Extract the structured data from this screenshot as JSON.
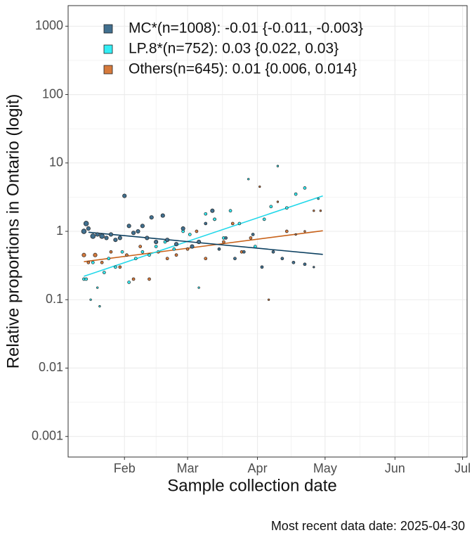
{
  "chart_data": {
    "type": "scatter",
    "xlabel": "Sample collection date",
    "ylabel": "Relative proportions in Ontario (logit)",
    "caption": "Most recent data date: 2025-04-30",
    "log_y": true,
    "grid": true,
    "legend": "top-left",
    "xlim": [
      "2025-01-07",
      "2025-07-03"
    ],
    "xticks": [
      {
        "value": "2025-02-01",
        "label": "Feb"
      },
      {
        "value": "2025-03-01",
        "label": "Mar"
      },
      {
        "value": "2025-04-01",
        "label": "Apr"
      },
      {
        "value": "2025-05-01",
        "label": "May"
      },
      {
        "value": "2025-06-01",
        "label": "Jun"
      },
      {
        "value": "2025-07-01",
        "label": "Jul"
      }
    ],
    "ylim": [
      0.0005,
      2000
    ],
    "yticks": [
      0.001,
      0.01,
      0.1,
      1,
      10,
      100,
      1000
    ],
    "series": [
      {
        "name": "MC*(n=1008): -0.01 {-0.011, -0.003}",
        "color": "#41708f",
        "line_color": "#0b3f60",
        "x": [
          "2025-01-14",
          "2025-01-15",
          "2025-01-16",
          "2025-01-18",
          "2025-01-20",
          "2025-01-22",
          "2025-01-24",
          "2025-01-26",
          "2025-01-28",
          "2025-01-30",
          "2025-02-01",
          "2025-02-03",
          "2025-02-05",
          "2025-02-07",
          "2025-02-09",
          "2025-02-11",
          "2025-02-13",
          "2025-02-15",
          "2025-02-18",
          "2025-02-20",
          "2025-02-24",
          "2025-02-27",
          "2025-03-03",
          "2025-03-06",
          "2025-03-09",
          "2025-03-12",
          "2025-03-15",
          "2025-03-18",
          "2025-03-22",
          "2025-03-26",
          "2025-03-30",
          "2025-04-03",
          "2025-04-08",
          "2025-04-12",
          "2025-04-17",
          "2025-04-22",
          "2025-04-26"
        ],
        "values": [
          1.0,
          1.3,
          1.1,
          0.85,
          0.9,
          0.85,
          0.8,
          0.9,
          0.75,
          0.8,
          3.3,
          1.2,
          0.95,
          1.0,
          1.2,
          0.8,
          1.6,
          0.7,
          1.7,
          0.75,
          0.65,
          1.1,
          0.6,
          0.7,
          1.3,
          2.0,
          0.55,
          0.8,
          0.4,
          0.5,
          0.9,
          0.3,
          0.5,
          0.4,
          0.35,
          0.33,
          0.3
        ],
        "sizes": [
          4,
          4,
          3,
          4,
          3,
          4,
          3,
          3,
          3,
          3,
          3,
          3,
          3,
          3,
          3,
          3,
          3,
          3,
          3,
          3,
          3,
          3,
          3,
          3,
          2,
          3,
          2,
          2,
          2,
          2,
          2,
          2,
          2,
          2,
          2,
          2,
          1
        ],
        "trend": {
          "x": [
            "2025-01-16",
            "2025-04-30"
          ],
          "values": [
            0.97,
            0.46
          ]
        }
      },
      {
        "name": "LP.8*(n=752): 0.03 {0.022, 0.03}",
        "color": "#33eef5",
        "line_color": "#22d8ea",
        "x": [
          "2025-01-14",
          "2025-01-15",
          "2025-01-17",
          "2025-01-18",
          "2025-01-20",
          "2025-01-21",
          "2025-01-23",
          "2025-01-25",
          "2025-01-28",
          "2025-01-31",
          "2025-02-03",
          "2025-02-06",
          "2025-02-09",
          "2025-02-12",
          "2025-02-15",
          "2025-02-19",
          "2025-02-23",
          "2025-02-27",
          "2025-03-02",
          "2025-03-06",
          "2025-03-09",
          "2025-03-13",
          "2025-03-17",
          "2025-03-20",
          "2025-03-24",
          "2025-03-28",
          "2025-03-31",
          "2025-04-04",
          "2025-04-07",
          "2025-04-10",
          "2025-04-14",
          "2025-04-18",
          "2025-04-22",
          "2025-04-28"
        ],
        "values": [
          0.2,
          0.2,
          0.1,
          0.35,
          0.15,
          0.08,
          0.25,
          0.4,
          0.3,
          0.5,
          0.18,
          0.4,
          0.5,
          0.45,
          0.6,
          0.7,
          0.55,
          1.0,
          0.9,
          0.15,
          1.8,
          1.5,
          0.8,
          2.0,
          1.3,
          5.8,
          0.6,
          1.5,
          2.3,
          9.0,
          2.2,
          3.5,
          4.3,
          3.0
        ],
        "sizes": [
          2,
          2,
          1,
          2,
          1,
          1,
          2,
          2,
          2,
          2,
          2,
          2,
          2,
          2,
          2,
          2,
          2,
          2,
          2,
          1,
          2,
          2,
          2,
          2,
          2,
          1,
          2,
          2,
          2,
          1,
          2,
          2,
          2,
          1
        ],
        "trend": {
          "x": [
            "2025-01-14",
            "2025-04-30"
          ],
          "values": [
            0.22,
            3.3
          ]
        }
      },
      {
        "name": "Others(n=645): 0.01 {0.006, 0.014}",
        "color": "#d67a3c",
        "line_color": "#c8621a",
        "x": [
          "2025-01-14",
          "2025-01-16",
          "2025-01-19",
          "2025-01-22",
          "2025-01-26",
          "2025-01-30",
          "2025-02-02",
          "2025-02-05",
          "2025-02-08",
          "2025-02-12",
          "2025-02-16",
          "2025-02-20",
          "2025-02-24",
          "2025-03-01",
          "2025-03-05",
          "2025-03-09",
          "2025-03-13",
          "2025-03-17",
          "2025-03-21",
          "2025-03-25",
          "2025-03-29",
          "2025-04-02",
          "2025-04-06",
          "2025-04-10",
          "2025-04-14",
          "2025-04-18",
          "2025-04-22",
          "2025-04-26",
          "2025-04-29"
        ],
        "values": [
          0.45,
          0.35,
          0.45,
          0.35,
          0.5,
          0.3,
          0.45,
          0.2,
          0.6,
          0.2,
          0.5,
          0.4,
          0.45,
          0.55,
          1.0,
          0.4,
          1.5,
          0.7,
          1.3,
          0.5,
          0.8,
          4.5,
          0.1,
          2.7,
          1.0,
          0.9,
          1.0,
          2.0,
          2.0
        ],
        "sizes": [
          3,
          2,
          3,
          2,
          2,
          2,
          2,
          2,
          2,
          2,
          2,
          2,
          2,
          2,
          2,
          2,
          2,
          2,
          2,
          2,
          2,
          1,
          1,
          1,
          2,
          1,
          1,
          1,
          1
        ],
        "trend": {
          "x": [
            "2025-01-14",
            "2025-04-30"
          ],
          "values": [
            0.36,
            1.02
          ]
        }
      }
    ]
  }
}
